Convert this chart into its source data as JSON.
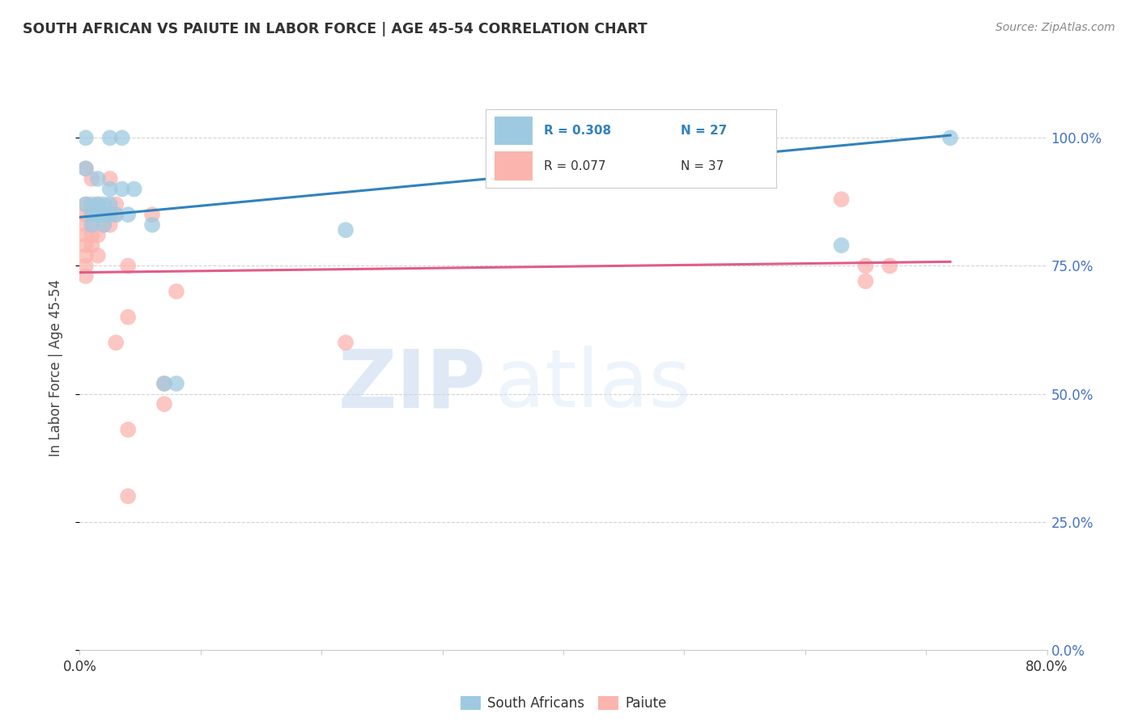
{
  "title": "SOUTH AFRICAN VS PAIUTE IN LABOR FORCE | AGE 45-54 CORRELATION CHART",
  "source": "Source: ZipAtlas.com",
  "ylabel": "In Labor Force | Age 45-54",
  "legend_blue_r": "R = 0.308",
  "legend_blue_n": "N = 27",
  "legend_pink_r": "R = 0.077",
  "legend_pink_n": "N = 37",
  "blue_color": "#9ecae1",
  "blue_line_color": "#3182bd",
  "pink_color": "#fbb4ae",
  "pink_line_color": "#e05c8a",
  "watermark_zip": "ZIP",
  "watermark_atlas": "atlas",
  "xlim": [
    0.0,
    0.8
  ],
  "ylim": [
    0.0,
    1.1
  ],
  "xtick_vals": [
    0.0,
    0.1,
    0.2,
    0.3,
    0.4,
    0.5,
    0.6,
    0.7,
    0.8
  ],
  "xtick_labels": [
    "0.0%",
    "",
    "",
    "",
    "",
    "",
    "",
    "",
    "80.0%"
  ],
  "ytick_vals": [
    0.0,
    0.25,
    0.5,
    0.75,
    1.0
  ],
  "ytick_labels": [
    "0.0%",
    "25.0%",
    "50.0%",
    "75.0%",
    "100.0%"
  ],
  "grid_color": "#d3d3d3",
  "background_color": "#ffffff",
  "axis_color": "#cccccc",
  "blue_scatter": [
    [
      0.005,
      1.0
    ],
    [
      0.025,
      1.0
    ],
    [
      0.035,
      1.0
    ],
    [
      0.005,
      0.94
    ],
    [
      0.015,
      0.92
    ],
    [
      0.025,
      0.9
    ],
    [
      0.035,
      0.9
    ],
    [
      0.045,
      0.9
    ],
    [
      0.005,
      0.87
    ],
    [
      0.01,
      0.87
    ],
    [
      0.015,
      0.87
    ],
    [
      0.02,
      0.87
    ],
    [
      0.025,
      0.87
    ],
    [
      0.01,
      0.85
    ],
    [
      0.015,
      0.85
    ],
    [
      0.02,
      0.85
    ],
    [
      0.025,
      0.85
    ],
    [
      0.03,
      0.85
    ],
    [
      0.04,
      0.85
    ],
    [
      0.01,
      0.83
    ],
    [
      0.02,
      0.83
    ],
    [
      0.06,
      0.83
    ],
    [
      0.22,
      0.82
    ],
    [
      0.07,
      0.52
    ],
    [
      0.08,
      0.52
    ],
    [
      0.63,
      0.79
    ],
    [
      0.72,
      1.0
    ]
  ],
  "pink_scatter": [
    [
      0.005,
      0.94
    ],
    [
      0.01,
      0.92
    ],
    [
      0.025,
      0.92
    ],
    [
      0.005,
      0.87
    ],
    [
      0.015,
      0.87
    ],
    [
      0.03,
      0.87
    ],
    [
      0.005,
      0.85
    ],
    [
      0.01,
      0.85
    ],
    [
      0.02,
      0.85
    ],
    [
      0.03,
      0.85
    ],
    [
      0.06,
      0.85
    ],
    [
      0.005,
      0.83
    ],
    [
      0.01,
      0.83
    ],
    [
      0.02,
      0.83
    ],
    [
      0.025,
      0.83
    ],
    [
      0.005,
      0.81
    ],
    [
      0.01,
      0.81
    ],
    [
      0.015,
      0.81
    ],
    [
      0.005,
      0.79
    ],
    [
      0.01,
      0.79
    ],
    [
      0.005,
      0.77
    ],
    [
      0.015,
      0.77
    ],
    [
      0.005,
      0.75
    ],
    [
      0.04,
      0.75
    ],
    [
      0.005,
      0.73
    ],
    [
      0.08,
      0.7
    ],
    [
      0.04,
      0.65
    ],
    [
      0.03,
      0.6
    ],
    [
      0.22,
      0.6
    ],
    [
      0.07,
      0.52
    ],
    [
      0.07,
      0.48
    ],
    [
      0.04,
      0.43
    ],
    [
      0.04,
      0.3
    ],
    [
      0.63,
      0.88
    ],
    [
      0.65,
      0.75
    ],
    [
      0.67,
      0.75
    ],
    [
      0.65,
      0.72
    ]
  ],
  "blue_line": [
    [
      0.0,
      0.845
    ],
    [
      0.72,
      1.005
    ]
  ],
  "pink_line": [
    [
      0.0,
      0.737
    ],
    [
      0.72,
      0.758
    ]
  ]
}
